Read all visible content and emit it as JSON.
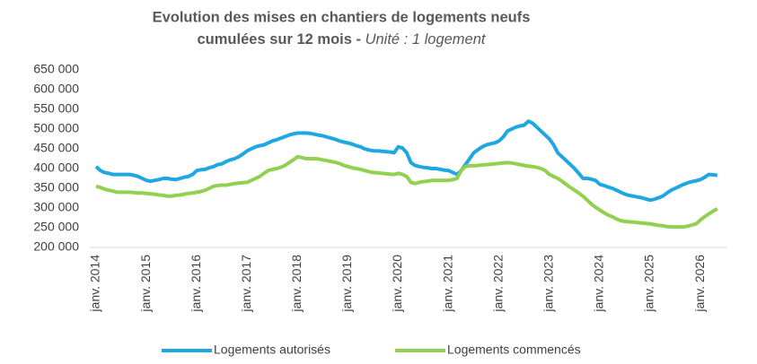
{
  "chart_data": {
    "type": "line",
    "title": "Evolution des mises en chantiers de logements neufs",
    "title_line2": "cumulées sur  12 mois - ",
    "subtitle": "Unité : 1 logement",
    "categories": [
      "janv. 2014",
      null,
      null,
      null,
      null,
      null,
      null,
      null,
      null,
      null,
      null,
      null,
      "janv. 2015",
      null,
      null,
      null,
      null,
      null,
      null,
      null,
      null,
      null,
      null,
      null,
      "janv. 2016",
      null,
      null,
      null,
      null,
      null,
      null,
      null,
      null,
      null,
      null,
      null,
      "janv. 2017",
      null,
      null,
      null,
      null,
      null,
      null,
      null,
      null,
      null,
      null,
      null,
      "janv. 2018",
      null,
      null,
      null,
      null,
      null,
      null,
      null,
      null,
      null,
      null,
      null,
      "janv. 2019",
      null,
      null,
      null,
      null,
      null,
      null,
      null,
      null,
      null,
      null,
      null,
      "janv. 2020",
      null,
      null,
      null,
      null,
      null,
      null,
      null,
      null,
      null,
      null,
      null,
      "janv. 2021",
      null,
      null,
      null,
      null,
      null,
      null,
      null,
      null,
      null,
      null,
      null,
      "janv. 2022",
      null,
      null,
      null,
      null,
      null,
      null,
      null,
      null,
      null,
      null,
      null,
      "janv. 2023",
      null,
      null,
      null,
      null,
      null,
      null,
      null,
      null,
      null,
      null,
      null,
      "janv. 2024",
      null,
      null,
      null,
      null,
      null,
      null,
      null,
      null,
      null,
      null,
      null,
      "janv. 2025",
      null,
      null,
      null,
      null,
      null,
      null,
      null,
      null,
      null,
      null,
      null,
      "janv. 2026",
      null,
      null,
      null,
      null
    ],
    "series": [
      {
        "name": "Logements autorisés",
        "color": "#1ea7e1",
        "values": [
          405000,
          395000,
          390000,
          388000,
          385000,
          385000,
          385000,
          385000,
          385000,
          383000,
          380000,
          375000,
          370000,
          368000,
          370000,
          372000,
          375000,
          375000,
          373000,
          372000,
          375000,
          378000,
          380000,
          385000,
          395000,
          397000,
          398000,
          402000,
          405000,
          410000,
          412000,
          418000,
          422000,
          425000,
          430000,
          437000,
          445000,
          450000,
          455000,
          458000,
          460000,
          465000,
          470000,
          473000,
          477000,
          481000,
          485000,
          488000,
          490000,
          490000,
          490000,
          489000,
          487000,
          485000,
          483000,
          480000,
          477000,
          474000,
          470000,
          467000,
          465000,
          462000,
          458000,
          455000,
          450000,
          447000,
          445000,
          445000,
          444000,
          443000,
          442000,
          440000,
          455000,
          452000,
          440000,
          415000,
          408000,
          405000,
          403000,
          402000,
          400000,
          400000,
          398000,
          396000,
          395000,
          390000,
          385000,
          395000,
          410000,
          425000,
          440000,
          448000,
          455000,
          460000,
          463000,
          465000,
          470000,
          480000,
          495000,
          500000,
          505000,
          508000,
          510000,
          520000,
          515000,
          505000,
          495000,
          485000,
          475000,
          460000,
          440000,
          430000,
          420000,
          410000,
          400000,
          388000,
          375000,
          375000,
          373000,
          370000,
          360000,
          357000,
          353000,
          350000,
          345000,
          340000,
          335000,
          332000,
          330000,
          328000,
          326000,
          323000,
          320000,
          322000,
          326000,
          330000,
          338000,
          345000,
          350000,
          355000,
          360000,
          364000,
          367000,
          369000,
          372000,
          378000,
          385000,
          384000,
          383000
        ]
      },
      {
        "name": "Logements commencés",
        "color": "#92d050",
        "values": [
          355000,
          352000,
          348000,
          345000,
          343000,
          340000,
          340000,
          340000,
          340000,
          339000,
          338000,
          338000,
          337000,
          336000,
          335000,
          333000,
          332000,
          330000,
          330000,
          332000,
          333000,
          335000,
          337000,
          338000,
          340000,
          342000,
          345000,
          350000,
          355000,
          357000,
          358000,
          358000,
          360000,
          362000,
          363000,
          364000,
          365000,
          370000,
          375000,
          380000,
          388000,
          395000,
          398000,
          400000,
          403000,
          408000,
          415000,
          422000,
          430000,
          428000,
          425000,
          425000,
          425000,
          424000,
          422000,
          420000,
          418000,
          416000,
          413000,
          408000,
          405000,
          402000,
          400000,
          398000,
          395000,
          392000,
          390000,
          389000,
          388000,
          387000,
          386000,
          385000,
          388000,
          385000,
          380000,
          365000,
          362000,
          365000,
          367000,
          368000,
          370000,
          370000,
          370000,
          370000,
          370000,
          372000,
          375000,
          395000,
          405000,
          407000,
          407000,
          408000,
          409000,
          410000,
          411000,
          412000,
          413000,
          414000,
          415000,
          414000,
          412000,
          410000,
          408000,
          406000,
          405000,
          403000,
          400000,
          395000,
          385000,
          380000,
          375000,
          368000,
          360000,
          352000,
          345000,
          338000,
          330000,
          320000,
          310000,
          302000,
          295000,
          288000,
          282000,
          278000,
          272000,
          268000,
          266000,
          265000,
          264000,
          263000,
          262000,
          261000,
          260000,
          258000,
          256000,
          255000,
          253000,
          252000,
          252000,
          252000,
          252000,
          254000,
          257000,
          260000,
          270000,
          278000,
          285000,
          292000,
          298000
        ]
      }
    ],
    "ylim": [
      200000,
      650000
    ],
    "yticks": [
      {
        "value": 200000,
        "label": "200 000"
      },
      {
        "value": 250000,
        "label": "250 000"
      },
      {
        "value": 300000,
        "label": "300 000"
      },
      {
        "value": 350000,
        "label": "350 000"
      },
      {
        "value": 400000,
        "label": "400 000"
      },
      {
        "value": 450000,
        "label": "450 000"
      },
      {
        "value": 500000,
        "label": "500 000"
      },
      {
        "value": 550000,
        "label": "550 000"
      },
      {
        "value": 600000,
        "label": "600 000"
      },
      {
        "value": 650000,
        "label": "650 000"
      }
    ],
    "grid": false,
    "legend": "bottom"
  }
}
